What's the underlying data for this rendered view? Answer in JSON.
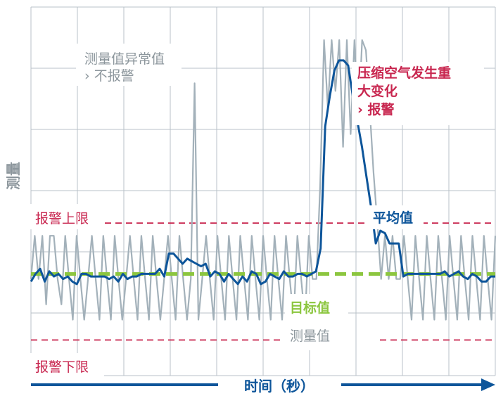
{
  "chart_data": {
    "type": "line",
    "ylabel": "测量",
    "xlabel": "时间（秒）",
    "limits": {
      "upper": {
        "label": "报警上限",
        "value": 20,
        "color": "#c8264f"
      },
      "lower": {
        "label": "报警下限",
        "value": -26,
        "color": "#c8264f"
      },
      "target": {
        "label": "目标值",
        "value": 0,
        "color": "#8cc63f"
      }
    },
    "annotations": {
      "anomaly_line1": "测量值异常值",
      "anomaly_line2": "› 不报警",
      "change_line1": "压缩空气发生重",
      "change_line2": "大变化",
      "change_line3": "› 报警"
    },
    "series": [
      {
        "name": "测量值",
        "color": "#a3b1ba",
        "values": [
          -2,
          15,
          -2,
          15,
          -12,
          15,
          15,
          -2,
          -12,
          15,
          -2,
          -18,
          15,
          -2,
          -18,
          -2,
          15,
          -2,
          -18,
          15,
          -2,
          -18,
          15,
          -2,
          -18,
          -2,
          15,
          -2,
          -18,
          15,
          -2,
          -18,
          15,
          -2,
          -18,
          -2,
          15,
          -2,
          -18,
          15,
          -2,
          -18,
          -2,
          75,
          -18,
          -2,
          15,
          -2,
          -18,
          15,
          -2,
          -18,
          15,
          -2,
          -18,
          15,
          -2,
          -18,
          15,
          -2,
          -18,
          15,
          -2,
          -18,
          15,
          -2,
          -18,
          15,
          -2,
          -18,
          15,
          -2,
          -18,
          15,
          -2,
          -2,
          35,
          92,
          65,
          92,
          72,
          92,
          50,
          92,
          55,
          92,
          58,
          92,
          88,
          65,
          40,
          20,
          -2,
          15,
          -2,
          15,
          -2,
          -2,
          15,
          -2,
          -18,
          15,
          -2,
          -18,
          15,
          -2,
          -18,
          15,
          -2,
          -18,
          15,
          -2,
          -18,
          15,
          -2,
          -18,
          15,
          -2,
          -18,
          15,
          -2,
          -18,
          15
        ]
      },
      {
        "name": "平均值",
        "color": "#0d559a",
        "values": [
          -3,
          0,
          2,
          -3,
          1,
          -1,
          0,
          -2,
          -1,
          -3,
          -4,
          0,
          0,
          -1,
          -1,
          -1,
          -1,
          -2,
          -1,
          -3,
          0,
          -2,
          -1,
          -1,
          0,
          0,
          0,
          0,
          2,
          -1,
          8,
          8,
          6,
          4,
          6,
          5,
          4,
          3,
          4,
          -1,
          1,
          0,
          -3,
          0,
          -2,
          -4,
          -1,
          -3,
          1,
          0,
          -4,
          -3,
          0,
          -1,
          -2,
          1,
          -1,
          -1,
          0,
          0,
          -1,
          0,
          1,
          10,
          58,
          70,
          80,
          84,
          84,
          82,
          70,
          60,
          50,
          38,
          26,
          12,
          17,
          16,
          12,
          12,
          12,
          -1,
          0,
          0,
          0,
          0,
          0,
          0,
          0,
          0,
          1,
          -1,
          0,
          1,
          -1,
          -2,
          0,
          -1,
          -3,
          -3,
          -1,
          -1
        ]
      }
    ],
    "ylim": [
      -40,
      105
    ],
    "grid": true
  }
}
